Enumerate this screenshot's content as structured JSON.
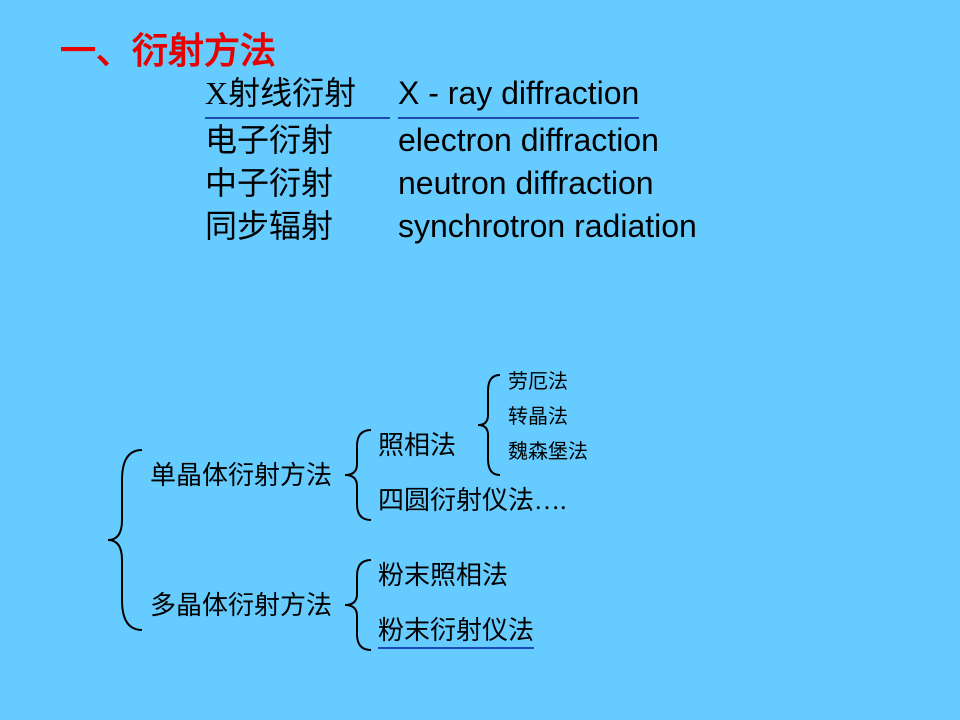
{
  "heading": {
    "text": "一、衍射方法",
    "color": "#e60000",
    "fontsize": 36
  },
  "list": {
    "fontsize": 32,
    "col1_width": 185,
    "items": [
      {
        "zh": "X射线衍射",
        "en": "X - ray diffraction",
        "underline": true
      },
      {
        "zh": "电子衍射",
        "en": "electron diffraction",
        "underline": false
      },
      {
        "zh": "中子衍射",
        "en": "neutron diffraction",
        "underline": false
      },
      {
        "zh": "同步辐射",
        "en": "synchrotron radiation",
        "underline": false
      }
    ]
  },
  "tree": {
    "fontsize": 26,
    "small_fontsize": 20,
    "text_color": "#000000",
    "l1": {
      "a": "单晶体衍射方法",
      "b": "多晶体衍射方法"
    },
    "l2a": {
      "a": "照相法",
      "b": "四圆衍射仪法…."
    },
    "l2b": {
      "a": "粉末照相法",
      "b": "粉末衍射仪法",
      "b_underline": true
    },
    "l3": {
      "a": "劳厄法",
      "b": "转晶法",
      "c": "魏森堡法"
    }
  },
  "colors": {
    "background": "#66ccff",
    "underline": "#1a4db3"
  }
}
